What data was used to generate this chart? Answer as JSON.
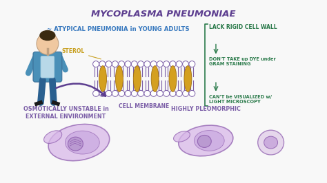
{
  "title": "MYCOPLASMA PNEUMONIAE",
  "subtitle": "~ ATYPICAL PNEUMONIA in YOUNG ADULTS",
  "title_color": "#5c3d8f",
  "subtitle_color": "#3a7abf",
  "bg_color": "#f8f8f8",
  "sterol_label": "STEROL",
  "sterol_color": "#c8a020",
  "cell_membrane_label": "CELL MEMBRANE",
  "cell_membrane_color": "#7b5ea7",
  "right_bullet1": "LACK RIGID CELL WALL",
  "right_bullet2": "DON'T TAKE up DYE under\nGRAM STAINING",
  "right_bullet3": "CAN'T be VISUALIZED w/\nLIGHT MICROSCOPY",
  "right_color": "#2a7a4a",
  "bottom_left_label": "OSMOTICALLY UNSTABLE in\nEXTERNAL ENVIRONMENT",
  "bottom_right_label": "HIGHLY PLEOMORPHIC",
  "bottom_label_color": "#7b5ea7",
  "lipid_head_color": "#ffffff",
  "lipid_edge_color": "#7b5ea7",
  "sterol_fill": "#d4a020",
  "sterol_edge": "#a07010",
  "cell_fill": "#d8b8e8",
  "cell_edge": "#9060b0",
  "person_skin": "#f0c8a0",
  "person_hair": "#3a2a10",
  "person_jacket": "#4a90b8",
  "person_shirt": "#b8d8e8",
  "person_pants": "#2a6090",
  "arrow_color": "#5c3d8f"
}
